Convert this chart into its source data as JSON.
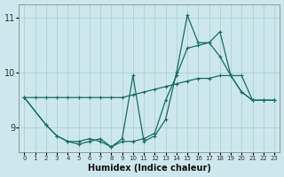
{
  "xlabel": "Humidex (Indice chaleur)",
  "bg_color": "#cce8ec",
  "grid_color": "#aacccc",
  "line_color": "#1a6b60",
  "xlim": [
    -0.5,
    23.5
  ],
  "ylim": [
    8.55,
    11.25
  ],
  "yticks": [
    9,
    10,
    11
  ],
  "xticks": [
    0,
    1,
    2,
    3,
    4,
    5,
    6,
    7,
    8,
    9,
    10,
    11,
    12,
    13,
    14,
    15,
    16,
    17,
    18,
    19,
    20,
    21,
    22,
    23
  ],
  "line1_x": [
    0,
    1,
    2,
    3,
    4,
    5,
    6,
    7,
    8,
    9,
    10,
    11,
    12,
    13,
    14,
    15,
    16,
    17,
    18,
    19,
    20,
    21,
    22,
    23
  ],
  "line1_y": [
    9.55,
    9.55,
    9.55,
    9.55,
    9.55,
    9.55,
    9.55,
    9.55,
    9.55,
    9.55,
    9.6,
    9.65,
    9.7,
    9.75,
    9.8,
    9.85,
    9.9,
    9.9,
    9.95,
    9.95,
    9.95,
    9.5,
    9.5,
    9.5
  ],
  "line2_x": [
    0,
    2,
    3,
    4,
    5,
    6,
    7,
    8,
    9,
    10,
    11,
    12,
    13,
    14,
    15,
    16,
    17,
    18,
    19,
    20,
    21,
    22,
    23
  ],
  "line2_y": [
    9.55,
    9.05,
    8.85,
    8.75,
    8.75,
    8.8,
    8.75,
    8.65,
    8.8,
    9.95,
    8.75,
    8.85,
    9.15,
    10.0,
    11.05,
    10.55,
    10.55,
    10.3,
    9.95,
    9.65,
    9.5,
    9.5,
    9.5
  ],
  "line3_x": [
    0,
    2,
    3,
    4,
    5,
    6,
    7,
    8,
    9,
    10,
    11,
    12,
    13,
    14,
    15,
    16,
    17,
    18,
    19,
    20,
    21,
    22,
    23
  ],
  "line3_y": [
    9.55,
    9.05,
    8.85,
    8.75,
    8.7,
    8.75,
    8.8,
    8.65,
    8.75,
    8.75,
    8.8,
    8.9,
    9.5,
    9.95,
    10.45,
    10.5,
    10.55,
    10.75,
    9.95,
    9.65,
    9.5,
    9.5,
    9.5
  ]
}
